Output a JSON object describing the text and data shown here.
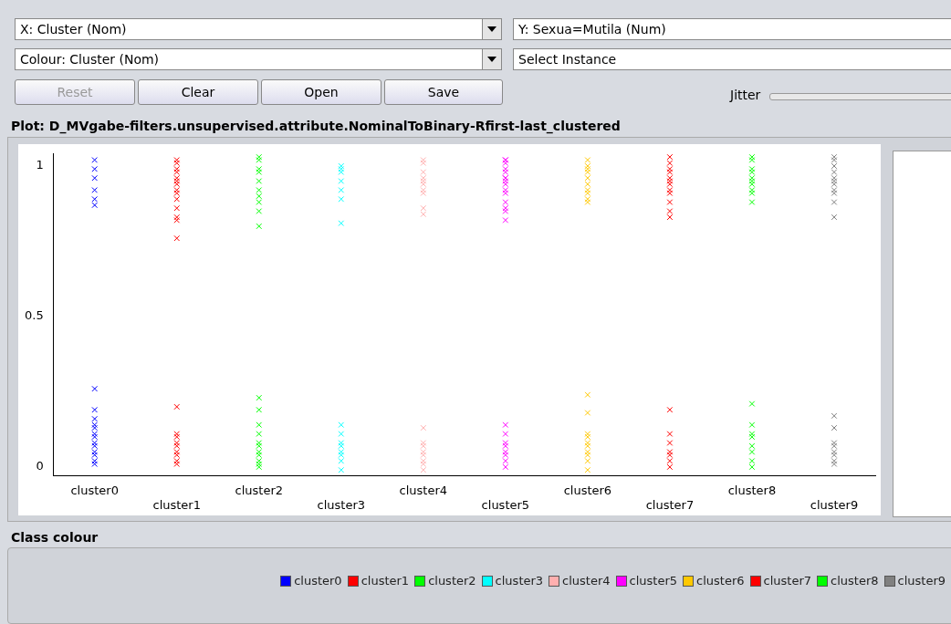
{
  "chart_data": {
    "type": "scatter",
    "title": "Plot: D_MVgabe-filters.unsupervised.attribute.NominalToBinary-Rfirst-last_clustered",
    "categories": [
      "cluster0",
      "cluster1",
      "cluster2",
      "cluster3",
      "cluster4",
      "cluster5",
      "cluster6",
      "cluster7",
      "cluster8",
      "cluster9"
    ],
    "ylim": [
      -0.03,
      1.04
    ],
    "yticks": [
      0,
      0.5,
      1
    ],
    "grid": false,
    "marker": "cross",
    "legend": "bottom",
    "legend_title": "Class colour",
    "annotations": [
      "X: Cluster (Nom)",
      "Y: Sexua=Mutila (Num)",
      "Colour: Cluster (Nom)",
      "Select Instance",
      "Reset",
      "Clear",
      "Open",
      "Save",
      "Jitter"
    ],
    "series": [
      {
        "name": "cluster0",
        "color": "#0000ff",
        "x": [
          "cluster0",
          "cluster0",
          "cluster0",
          "cluster0",
          "cluster0",
          "cluster0",
          "cluster0",
          "cluster0",
          "cluster0",
          "cluster0",
          "cluster0",
          "cluster0",
          "cluster0",
          "cluster0",
          "cluster0",
          "cluster0",
          "cluster0",
          "cluster0",
          "cluster0"
        ],
        "values": [
          1.02,
          0.99,
          0.96,
          0.92,
          0.89,
          0.87,
          0.26,
          0.19,
          0.16,
          0.14,
          0.13,
          0.11,
          0.1,
          0.08,
          0.07,
          0.05,
          0.04,
          0.02,
          0.01
        ]
      },
      {
        "name": "cluster1",
        "color": "#ff0000",
        "x": [
          "cluster1",
          "cluster1",
          "cluster1",
          "cluster1",
          "cluster1",
          "cluster1",
          "cluster1",
          "cluster1",
          "cluster1",
          "cluster1",
          "cluster1",
          "cluster1",
          "cluster1",
          "cluster1",
          "cluster1",
          "cluster1",
          "cluster1",
          "cluster1",
          "cluster1",
          "cluster1",
          "cluster1",
          "cluster1",
          "cluster1"
        ],
        "values": [
          1.02,
          1.01,
          0.99,
          0.98,
          0.96,
          0.95,
          0.94,
          0.92,
          0.91,
          0.89,
          0.86,
          0.83,
          0.82,
          0.76,
          0.2,
          0.11,
          0.1,
          0.08,
          0.07,
          0.05,
          0.04,
          0.02,
          0.01
        ]
      },
      {
        "name": "cluster2",
        "color": "#00ff00",
        "x": [
          "cluster2",
          "cluster2",
          "cluster2",
          "cluster2",
          "cluster2",
          "cluster2",
          "cluster2",
          "cluster2",
          "cluster2",
          "cluster2",
          "cluster2",
          "cluster2",
          "cluster2",
          "cluster2",
          "cluster2",
          "cluster2",
          "cluster2",
          "cluster2",
          "cluster2",
          "cluster2",
          "cluster2"
        ],
        "values": [
          1.03,
          1.02,
          0.99,
          0.98,
          0.95,
          0.92,
          0.9,
          0.88,
          0.85,
          0.8,
          0.23,
          0.19,
          0.14,
          0.11,
          0.08,
          0.07,
          0.05,
          0.04,
          0.02,
          0.01,
          0
        ]
      },
      {
        "name": "cluster3",
        "color": "#00ffff",
        "x": [
          "cluster3",
          "cluster3",
          "cluster3",
          "cluster3",
          "cluster3",
          "cluster3",
          "cluster3",
          "cluster3",
          "cluster3",
          "cluster3",
          "cluster3",
          "cluster3",
          "cluster3",
          "cluster3",
          "cluster3"
        ],
        "values": [
          1,
          0.99,
          0.98,
          0.95,
          0.92,
          0.89,
          0.81,
          0.14,
          0.11,
          0.08,
          0.07,
          0.05,
          0.04,
          0.02,
          -0.01
        ]
      },
      {
        "name": "cluster4",
        "color": "#ffafaf",
        "x": [
          "cluster4",
          "cluster4",
          "cluster4",
          "cluster4",
          "cluster4",
          "cluster4",
          "cluster4",
          "cluster4",
          "cluster4",
          "cluster4",
          "cluster4",
          "cluster4",
          "cluster4",
          "cluster4",
          "cluster4",
          "cluster4",
          "cluster4",
          "cluster4"
        ],
        "values": [
          1.02,
          1.01,
          0.98,
          0.96,
          0.95,
          0.94,
          0.92,
          0.91,
          0.86,
          0.84,
          0.13,
          0.08,
          0.07,
          0.05,
          0.04,
          0.02,
          0.01,
          -0.01
        ]
      },
      {
        "name": "cluster5",
        "color": "#ff00ff",
        "x": [
          "cluster5",
          "cluster5",
          "cluster5",
          "cluster5",
          "cluster5",
          "cluster5",
          "cluster5",
          "cluster5",
          "cluster5",
          "cluster5",
          "cluster5",
          "cluster5",
          "cluster5",
          "cluster5",
          "cluster5",
          "cluster5",
          "cluster5",
          "cluster5",
          "cluster5",
          "cluster5",
          "cluster5",
          "cluster5",
          "cluster5"
        ],
        "values": [
          1.02,
          1.02,
          1.01,
          0.99,
          0.98,
          0.96,
          0.96,
          0.95,
          0.94,
          0.92,
          0.91,
          0.88,
          0.86,
          0.85,
          0.82,
          0.14,
          0.11,
          0.08,
          0.07,
          0.05,
          0.04,
          0.02,
          0
        ]
      },
      {
        "name": "cluster6",
        "color": "#ffc800",
        "x": [
          "cluster6",
          "cluster6",
          "cluster6",
          "cluster6",
          "cluster6",
          "cluster6",
          "cluster6",
          "cluster6",
          "cluster6",
          "cluster6",
          "cluster6",
          "cluster6",
          "cluster6",
          "cluster6",
          "cluster6",
          "cluster6",
          "cluster6",
          "cluster6",
          "cluster6",
          "cluster6"
        ],
        "values": [
          1.02,
          1,
          0.99,
          0.98,
          0.96,
          0.94,
          0.92,
          0.91,
          0.89,
          0.88,
          0.24,
          0.18,
          0.11,
          0.1,
          0.08,
          0.07,
          0.05,
          0.04,
          0.02,
          -0.01
        ]
      },
      {
        "name": "cluster7",
        "color": "#ff0000",
        "x": [
          "cluster7",
          "cluster7",
          "cluster7",
          "cluster7",
          "cluster7",
          "cluster7",
          "cluster7",
          "cluster7",
          "cluster7",
          "cluster7",
          "cluster7",
          "cluster7",
          "cluster7",
          "cluster7",
          "cluster7",
          "cluster7",
          "cluster7",
          "cluster7",
          "cluster7"
        ],
        "values": [
          1.03,
          1.01,
          0.99,
          0.98,
          0.96,
          0.95,
          0.94,
          0.92,
          0.91,
          0.88,
          0.85,
          0.83,
          0.19,
          0.11,
          0.08,
          0.05,
          0.04,
          0.02,
          0
        ]
      },
      {
        "name": "cluster8",
        "color": "#00ff00",
        "x": [
          "cluster8",
          "cluster8",
          "cluster8",
          "cluster8",
          "cluster8",
          "cluster8",
          "cluster8",
          "cluster8",
          "cluster8",
          "cluster8",
          "cluster8",
          "cluster8",
          "cluster8",
          "cluster8",
          "cluster8",
          "cluster8",
          "cluster8",
          "cluster8"
        ],
        "values": [
          1.03,
          1.02,
          0.99,
          0.98,
          0.96,
          0.95,
          0.94,
          0.92,
          0.91,
          0.88,
          0.21,
          0.14,
          0.11,
          0.1,
          0.07,
          0.05,
          0.02,
          0
        ]
      },
      {
        "name": "cluster9",
        "color": "#808080",
        "x": [
          "cluster9",
          "cluster9",
          "cluster9",
          "cluster9",
          "cluster9",
          "cluster9",
          "cluster9",
          "cluster9",
          "cluster9",
          "cluster9",
          "cluster9",
          "cluster9",
          "cluster9",
          "cluster9",
          "cluster9",
          "cluster9",
          "cluster9",
          "cluster9",
          "cluster9"
        ],
        "values": [
          1.03,
          1.02,
          1,
          0.98,
          0.96,
          0.95,
          0.94,
          0.92,
          0.91,
          0.88,
          0.83,
          0.17,
          0.13,
          0.08,
          0.07,
          0.05,
          0.04,
          0.02,
          0.01
        ]
      }
    ]
  }
}
